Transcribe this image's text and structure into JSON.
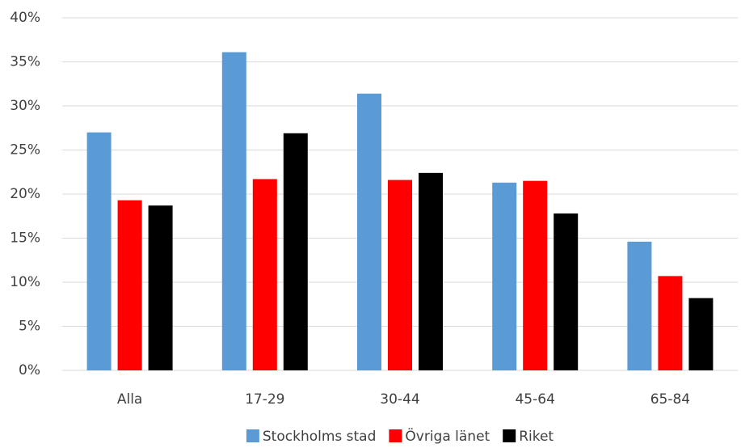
{
  "chart_data": {
    "type": "bar",
    "categories": [
      "Alla",
      "17-29",
      "30-44",
      "45-64",
      "65-84"
    ],
    "series": [
      {
        "name": "Stockholms stad",
        "color": "#5b9bd5",
        "values": [
          27.0,
          36.1,
          31.4,
          21.3,
          14.6
        ]
      },
      {
        "name": "Övriga länet",
        "color": "#ff0000",
        "values": [
          19.3,
          21.7,
          21.6,
          21.5,
          10.7
        ]
      },
      {
        "name": "Riket",
        "color": "#000000",
        "values": [
          18.7,
          26.9,
          22.4,
          17.8,
          8.2
        ]
      }
    ],
    "ylim": [
      0,
      40
    ],
    "yticks": [
      {
        "value": 0,
        "label": "0%"
      },
      {
        "value": 5,
        "label": "5%"
      },
      {
        "value": 10,
        "label": "10%"
      },
      {
        "value": 15,
        "label": "15%"
      },
      {
        "value": 20,
        "label": "20%"
      },
      {
        "value": 25,
        "label": "25%"
      },
      {
        "value": 30,
        "label": "30%"
      },
      {
        "value": 35,
        "label": "35%"
      },
      {
        "value": 40,
        "label": "40%"
      }
    ],
    "grid": true,
    "legend": "bottom"
  }
}
